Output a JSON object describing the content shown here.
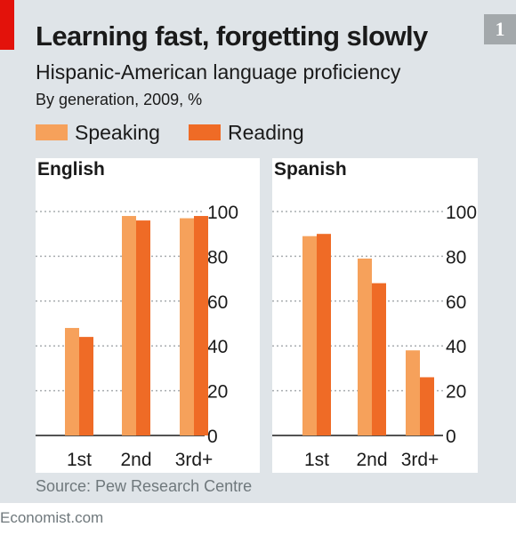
{
  "header": {
    "badge": "1",
    "title": "Learning fast, forgetting slowly",
    "subtitle": "Hispanic-American language proficiency",
    "unit_note": "By generation, 2009, %"
  },
  "colors": {
    "background": "#dfe4e8",
    "accent_red": "#e3120b",
    "speaking": "#f6a15b",
    "reading": "#ef6b26"
  },
  "chart_data": [
    {
      "type": "bar",
      "title": "English",
      "categories": [
        "1st",
        "2nd",
        "3rd+"
      ],
      "series": [
        {
          "name": "Speaking",
          "values": [
            48,
            98,
            97
          ]
        },
        {
          "name": "Reading",
          "values": [
            44,
            96,
            98
          ]
        }
      ],
      "ylim": [
        0,
        100
      ],
      "yticks": [
        "0",
        "20",
        "40",
        "60",
        "80",
        "100"
      ],
      "grid": true,
      "legend": "top-left"
    },
    {
      "type": "bar",
      "title": "Spanish",
      "categories": [
        "1st",
        "2nd",
        "3rd+"
      ],
      "series": [
        {
          "name": "Speaking",
          "values": [
            89,
            79,
            38
          ]
        },
        {
          "name": "Reading",
          "values": [
            90,
            68,
            26
          ]
        }
      ],
      "ylim": [
        0,
        100
      ],
      "yticks": [
        "0",
        "20",
        "40",
        "60",
        "80",
        "100"
      ],
      "grid": true,
      "legend": "top-left"
    }
  ],
  "source": "Source: Pew Research Centre",
  "footer": "Economist.com"
}
